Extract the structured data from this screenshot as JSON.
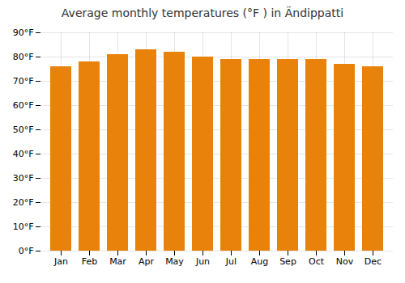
{
  "chart_data": {
    "type": "bar",
    "title": "Average monthly temperatures (°F ) in Ändippatti",
    "categories": [
      "Jan",
      "Feb",
      "Mar",
      "Apr",
      "May",
      "Jun",
      "Jul",
      "Aug",
      "Sep",
      "Oct",
      "Nov",
      "Dec"
    ],
    "values": [
      76,
      78,
      81,
      83,
      82,
      80,
      79,
      79,
      79,
      79,
      77,
      76
    ],
    "color": "#E8820A",
    "ylim": [
      0,
      90
    ],
    "yticks": [
      {
        "value": 0,
        "label": "0°F"
      },
      {
        "value": 10,
        "label": "10°F"
      },
      {
        "value": 20,
        "label": "20°F"
      },
      {
        "value": 30,
        "label": "30°F"
      },
      {
        "value": 40,
        "label": "40°F"
      },
      {
        "value": 50,
        "label": "50°F"
      },
      {
        "value": 60,
        "label": "60°F"
      },
      {
        "value": 70,
        "label": "70°F"
      },
      {
        "value": 80,
        "label": "80°F"
      },
      {
        "value": 90,
        "label": "90°F"
      }
    ],
    "grid": true
  }
}
